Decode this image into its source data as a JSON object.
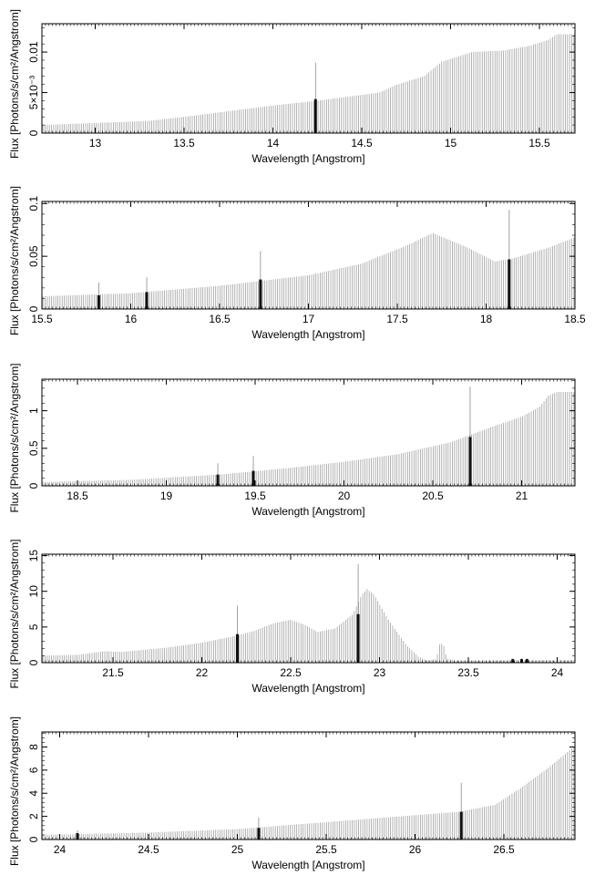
{
  "chart_data": [
    {
      "type": "bar",
      "xlabel": "Wavelength [Angstrom]",
      "ylabel": "Flux [Photons/s/cm²/Angstrom]",
      "xlim": [
        12.7,
        15.7
      ],
      "ylim": [
        0,
        0.0135
      ],
      "xticks": [
        {
          "v": 13,
          "label": "13"
        },
        {
          "v": 13.5,
          "label": "13.5"
        },
        {
          "v": 14,
          "label": "14"
        },
        {
          "v": 14.5,
          "label": "14.5"
        },
        {
          "v": 15,
          "label": "15"
        },
        {
          "v": 15.5,
          "label": "15.5"
        }
      ],
      "yticks": [
        {
          "v": 0,
          "label": "0"
        },
        {
          "v": 0.005,
          "label": "5×10⁻³"
        },
        {
          "v": 0.01,
          "label": "0.01"
        }
      ],
      "continuum": [
        [
          12.7,
          0.001
        ],
        [
          13.3,
          0.0015
        ],
        [
          13.5,
          0.002
        ],
        [
          13.75,
          0.0027
        ],
        [
          14.0,
          0.0034
        ],
        [
          14.25,
          0.004
        ],
        [
          14.6,
          0.005
        ],
        [
          14.7,
          0.006
        ],
        [
          14.85,
          0.007
        ],
        [
          14.95,
          0.0088
        ],
        [
          15.05,
          0.0095
        ],
        [
          15.12,
          0.01
        ],
        [
          15.3,
          0.0102
        ],
        [
          15.45,
          0.0108
        ],
        [
          15.55,
          0.0115
        ],
        [
          15.6,
          0.0122
        ],
        [
          15.7,
          0.0122
        ]
      ],
      "lines": [
        {
          "x": 14.24,
          "thick": 0.0042,
          "thin": 0.0087
        }
      ]
    },
    {
      "type": "bar",
      "xlabel": "Wavelength [Angstrom]",
      "ylabel": "Flux [Photons/s/cm²/Angstrom]",
      "xlim": [
        15.5,
        18.5
      ],
      "ylim": [
        0,
        0.102
      ],
      "xticks": [
        {
          "v": 15.5,
          "label": "15.5"
        },
        {
          "v": 16,
          "label": "16"
        },
        {
          "v": 16.5,
          "label": "16.5"
        },
        {
          "v": 17,
          "label": "17"
        },
        {
          "v": 17.5,
          "label": "17.5"
        },
        {
          "v": 18,
          "label": "18"
        },
        {
          "v": 18.5,
          "label": "18.5"
        }
      ],
      "yticks": [
        {
          "v": 0,
          "label": "0"
        },
        {
          "v": 0.05,
          "label": "0.05"
        },
        {
          "v": 0.1,
          "label": "0.1"
        }
      ],
      "continuum": [
        [
          15.5,
          0.012
        ],
        [
          16.0,
          0.015
        ],
        [
          16.5,
          0.022
        ],
        [
          17.0,
          0.032
        ],
        [
          17.3,
          0.043
        ],
        [
          17.55,
          0.06
        ],
        [
          17.7,
          0.072
        ],
        [
          17.9,
          0.058
        ],
        [
          18.05,
          0.045
        ],
        [
          18.15,
          0.048
        ],
        [
          18.35,
          0.058
        ],
        [
          18.5,
          0.068
        ]
      ],
      "lines": [
        {
          "x": 15.82,
          "thick": 0.013,
          "thin": 0.025
        },
        {
          "x": 16.09,
          "thick": 0.016,
          "thin": 0.03
        },
        {
          "x": 16.73,
          "thick": 0.028,
          "thin": 0.055
        },
        {
          "x": 18.13,
          "thick": 0.047,
          "thin": 0.094
        }
      ]
    },
    {
      "type": "bar",
      "xlabel": "Wavelength [Angstrom]",
      "ylabel": "Flux [Photons/s/cm²/Angstrom]",
      "xlim": [
        18.3,
        21.3
      ],
      "ylim": [
        0,
        1.42
      ],
      "xticks": [
        {
          "v": 18.5,
          "label": "18.5"
        },
        {
          "v": 19,
          "label": "19"
        },
        {
          "v": 19.5,
          "label": "19.5"
        },
        {
          "v": 20,
          "label": "20"
        },
        {
          "v": 20.5,
          "label": "20.5"
        },
        {
          "v": 21,
          "label": "21"
        }
      ],
      "yticks": [
        {
          "v": 0,
          "label": "0"
        },
        {
          "v": 0.5,
          "label": "0.5"
        },
        {
          "v": 1,
          "label": "1"
        }
      ],
      "continuum": [
        [
          18.3,
          0.05
        ],
        [
          18.8,
          0.08
        ],
        [
          19.3,
          0.15
        ],
        [
          19.7,
          0.24
        ],
        [
          20.0,
          0.32
        ],
        [
          20.3,
          0.42
        ],
        [
          20.6,
          0.58
        ],
        [
          20.85,
          0.8
        ],
        [
          21.0,
          0.92
        ],
        [
          21.1,
          1.05
        ],
        [
          21.15,
          1.2
        ],
        [
          21.2,
          1.25
        ],
        [
          21.3,
          1.25
        ]
      ],
      "lines": [
        {
          "x": 19.29,
          "thick": 0.15,
          "thin": 0.3
        },
        {
          "x": 19.49,
          "thick": 0.2,
          "thin": 0.4
        },
        {
          "x": 20.71,
          "thick": 0.65,
          "thin": 1.32
        }
      ]
    },
    {
      "type": "bar",
      "xlabel": "Wavelength [Angstrom]",
      "ylabel": "Flux [Photons/s/cm²/Angstrom]",
      "xlim": [
        21.1,
        24.1
      ],
      "ylim": [
        0,
        15.2
      ],
      "xticks": [
        {
          "v": 21.5,
          "label": "21.5"
        },
        {
          "v": 22,
          "label": "22"
        },
        {
          "v": 22.5,
          "label": "22.5"
        },
        {
          "v": 23,
          "label": "23"
        },
        {
          "v": 23.5,
          "label": "23.5"
        },
        {
          "v": 24,
          "label": "24"
        }
      ],
      "yticks": [
        {
          "v": 0,
          "label": "0"
        },
        {
          "v": 5,
          "label": "5"
        },
        {
          "v": 10,
          "label": "10"
        },
        {
          "v": 15,
          "label": "15"
        }
      ],
      "continuum": [
        [
          21.1,
          1.0
        ],
        [
          21.3,
          1.1
        ],
        [
          21.45,
          1.6
        ],
        [
          21.55,
          1.5
        ],
        [
          21.8,
          2.1
        ],
        [
          22.0,
          2.8
        ],
        [
          22.2,
          3.8
        ],
        [
          22.3,
          4.5
        ],
        [
          22.4,
          5.5
        ],
        [
          22.5,
          6.0
        ],
        [
          22.58,
          5.3
        ],
        [
          22.65,
          4.3
        ],
        [
          22.75,
          4.8
        ],
        [
          22.85,
          6.8
        ],
        [
          22.9,
          9.5
        ],
        [
          22.93,
          10.3
        ],
        [
          22.97,
          9.5
        ],
        [
          23.05,
          6.0
        ],
        [
          23.15,
          2.5
        ],
        [
          23.22,
          0.8
        ],
        [
          23.27,
          0.3
        ],
        [
          23.32,
          0.5
        ],
        [
          23.34,
          2.8
        ],
        [
          23.36,
          2.5
        ],
        [
          23.38,
          0.6
        ],
        [
          23.42,
          0.3
        ],
        [
          24.1,
          0.35
        ]
      ],
      "lines": [
        {
          "x": 22.2,
          "thick": 4.0,
          "thin": 8.0
        },
        {
          "x": 22.88,
          "thick": 6.8,
          "thin": 13.8
        },
        {
          "x": 23.75,
          "thick": 0.5,
          "thin": 0.6
        },
        {
          "x": 23.8,
          "thick": 0.5,
          "thin": 0.6
        },
        {
          "x": 23.83,
          "thick": 0.5,
          "thin": 0.6
        }
      ]
    },
    {
      "type": "bar",
      "xlabel": "Wavelength [Angstrom]",
      "ylabel": "Flux [Photons/s/cm²/Angstrom]",
      "xlim": [
        23.9,
        26.9
      ],
      "ylim": [
        0,
        9.3
      ],
      "xticks": [
        {
          "v": 24,
          "label": "24"
        },
        {
          "v": 24.5,
          "label": "24.5"
        },
        {
          "v": 25,
          "label": "25"
        },
        {
          "v": 25.5,
          "label": "25.5"
        },
        {
          "v": 26,
          "label": "26"
        },
        {
          "v": 26.5,
          "label": "26.5"
        }
      ],
      "yticks": [
        {
          "v": 0,
          "label": "0"
        },
        {
          "v": 2,
          "label": "2"
        },
        {
          "v": 4,
          "label": "4"
        },
        {
          "v": 6,
          "label": "6"
        },
        {
          "v": 8,
          "label": "8"
        }
      ],
      "continuum": [
        [
          23.9,
          0.4
        ],
        [
          24.5,
          0.6
        ],
        [
          25.0,
          0.9
        ],
        [
          25.5,
          1.5
        ],
        [
          26.0,
          2.1
        ],
        [
          26.25,
          2.4
        ],
        [
          26.45,
          3.0
        ],
        [
          26.6,
          4.5
        ],
        [
          26.75,
          6.2
        ],
        [
          26.9,
          8.1
        ]
      ],
      "lines": [
        {
          "x": 24.1,
          "thick": 0.55,
          "thin": 0.8
        },
        {
          "x": 25.12,
          "thick": 1.0,
          "thin": 1.9
        },
        {
          "x": 26.26,
          "thick": 2.4,
          "thin": 4.9
        }
      ]
    }
  ]
}
